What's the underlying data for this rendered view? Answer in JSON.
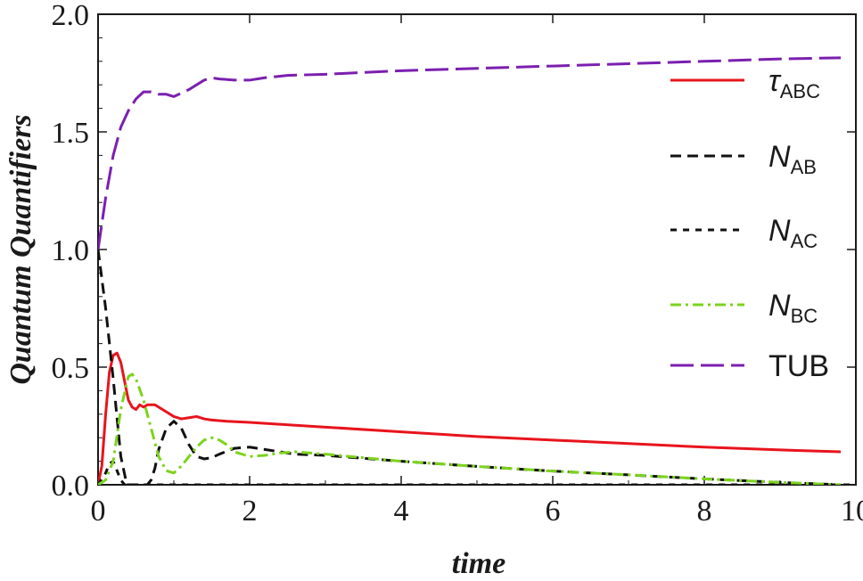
{
  "chart_data": {
    "type": "line",
    "title": "",
    "xlabel": "time",
    "ylabel": "Quantum Quantifiers",
    "xlim": [
      0,
      10
    ],
    "ylim": [
      0,
      2
    ],
    "xticks": [
      0,
      2,
      4,
      6,
      8,
      10
    ],
    "yticks": [
      0.0,
      0.5,
      1.0,
      1.5,
      2.0
    ],
    "xtick_labels": [
      "0",
      "2",
      "4",
      "6",
      "8",
      "10"
    ],
    "ytick_labels": [
      "0.0",
      "0.5",
      "1.0",
      "1.5",
      "2.0"
    ],
    "grid": false,
    "legend_position": "top-right",
    "series": [
      {
        "name": "τABC",
        "legend_main": "τ",
        "legend_sub": "ABC",
        "color": "#e8141c",
        "style": "solid",
        "x": [
          0,
          0.05,
          0.1,
          0.15,
          0.2,
          0.25,
          0.3,
          0.35,
          0.4,
          0.45,
          0.5,
          0.55,
          0.6,
          0.65,
          0.7,
          0.75,
          0.8,
          0.9,
          1.0,
          1.1,
          1.2,
          1.3,
          1.4,
          1.5,
          1.7,
          2.0,
          3.0,
          4.0,
          5.0,
          6.0,
          7.0,
          8.0,
          9.0,
          9.8
        ],
        "y": [
          0.0,
          0.08,
          0.3,
          0.48,
          0.55,
          0.56,
          0.52,
          0.44,
          0.36,
          0.33,
          0.32,
          0.34,
          0.33,
          0.34,
          0.34,
          0.34,
          0.33,
          0.31,
          0.29,
          0.28,
          0.285,
          0.29,
          0.28,
          0.275,
          0.27,
          0.265,
          0.245,
          0.225,
          0.205,
          0.19,
          0.175,
          0.16,
          0.148,
          0.14
        ]
      },
      {
        "name": "NAB",
        "legend_main": "N",
        "legend_sub": "AB",
        "color": "#111111",
        "style": "dash",
        "x": [
          0,
          0.1,
          0.2,
          0.3,
          0.38,
          0.45,
          0.6,
          0.65,
          0.7,
          0.75,
          0.8,
          0.9,
          1.0,
          1.1,
          1.2,
          1.3,
          1.4,
          1.5,
          1.6,
          1.8,
          2.0,
          2.2,
          2.4,
          2.6,
          3.0,
          4.0,
          5.0,
          6.0,
          7.0,
          8.0,
          9.0,
          9.8
        ],
        "y": [
          1.0,
          0.75,
          0.45,
          0.12,
          0.0,
          0.0,
          0.0,
          0.0,
          0.02,
          0.07,
          0.15,
          0.24,
          0.27,
          0.24,
          0.17,
          0.12,
          0.11,
          0.115,
          0.13,
          0.155,
          0.16,
          0.15,
          0.14,
          0.13,
          0.125,
          0.1,
          0.078,
          0.058,
          0.042,
          0.025,
          0.01,
          0.0
        ]
      },
      {
        "name": "NAC",
        "legend_main": "N",
        "legend_sub": "AC",
        "color": "#111111",
        "style": "short-dash",
        "x": [
          0,
          0.1,
          0.15,
          0.2,
          0.25,
          0.3,
          0.35,
          0.4,
          1.0,
          2.0,
          4.0,
          6.0,
          8.0,
          10.0
        ],
        "y": [
          0.0,
          0.05,
          0.09,
          0.1,
          0.06,
          0.02,
          0.0,
          0.0,
          0.0,
          0.0,
          0.0,
          0.0,
          0.0,
          0.0
        ]
      },
      {
        "name": "NBC",
        "legend_main": "N",
        "legend_sub": "BC",
        "color": "#7cd31c",
        "style": "dash-dot",
        "x": [
          0,
          0.1,
          0.2,
          0.3,
          0.4,
          0.45,
          0.5,
          0.6,
          0.7,
          0.8,
          0.9,
          1.0,
          1.1,
          1.2,
          1.3,
          1.4,
          1.5,
          1.6,
          1.7,
          1.8,
          2.0,
          2.2,
          2.4,
          2.6,
          3.0,
          4.0,
          5.0,
          6.0,
          7.0,
          8.0,
          9.0,
          9.8
        ],
        "y": [
          0.0,
          0.02,
          0.1,
          0.32,
          0.46,
          0.47,
          0.45,
          0.36,
          0.24,
          0.12,
          0.06,
          0.05,
          0.08,
          0.12,
          0.16,
          0.19,
          0.2,
          0.19,
          0.17,
          0.14,
          0.12,
          0.125,
          0.135,
          0.14,
          0.13,
          0.1,
          0.078,
          0.058,
          0.042,
          0.025,
          0.01,
          0.0
        ]
      },
      {
        "name": "TUB",
        "legend_main": "TUB",
        "legend_sub": "",
        "color": "#7b1fb0",
        "style": "long-dash",
        "x": [
          0,
          0.1,
          0.2,
          0.3,
          0.4,
          0.5,
          0.6,
          0.7,
          0.8,
          0.9,
          1.0,
          1.1,
          1.2,
          1.3,
          1.4,
          1.5,
          1.6,
          1.8,
          2.0,
          2.2,
          2.5,
          3.0,
          4.0,
          5.0,
          6.0,
          7.0,
          8.0,
          9.0,
          9.8
        ],
        "y": [
          1.0,
          1.22,
          1.4,
          1.52,
          1.59,
          1.64,
          1.67,
          1.67,
          1.66,
          1.66,
          1.65,
          1.665,
          1.68,
          1.7,
          1.72,
          1.73,
          1.725,
          1.72,
          1.72,
          1.73,
          1.74,
          1.745,
          1.76,
          1.77,
          1.78,
          1.79,
          1.8,
          1.81,
          1.815
        ]
      }
    ]
  }
}
